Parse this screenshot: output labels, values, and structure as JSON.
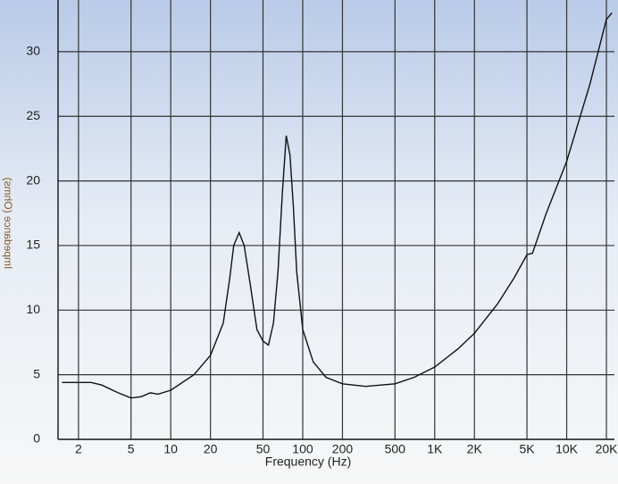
{
  "chart_data": {
    "type": "line",
    "x_label": "Frequency (Hz)",
    "y_label": "Impedance (Ohms)",
    "log_x": true,
    "grid": true,
    "color": "#111111",
    "x": [
      1.5,
      2,
      2.5,
      3,
      4,
      5,
      6,
      7,
      8,
      10,
      15,
      20,
      25,
      28,
      30,
      33,
      36,
      40,
      45,
      50,
      55,
      60,
      65,
      70,
      75,
      80,
      85,
      90,
      100,
      120,
      150,
      200,
      300,
      500,
      700,
      1000,
      1500,
      2000,
      3000,
      4000,
      5000,
      5500,
      7000,
      10000,
      15000,
      20000,
      22000
    ],
    "values": [
      4.4,
      4.4,
      4.4,
      4.2,
      3.6,
      3.2,
      3.3,
      3.6,
      3.5,
      3.8,
      5,
      6.5,
      9,
      12.5,
      15,
      16,
      15,
      12,
      8.5,
      7.6,
      7.3,
      9,
      13,
      19,
      23.5,
      22,
      18,
      13,
      8.5,
      6,
      4.8,
      4.3,
      4.1,
      4.3,
      4.8,
      5.6,
      7,
      8.2,
      10.5,
      12.5,
      14.3,
      14.4,
      17.5,
      21.5,
      27.5,
      32.5,
      33
    ],
    "xlim": [
      1.4,
      23000
    ],
    "ylim": [
      0,
      34
    ],
    "xticks": [
      2,
      5,
      10,
      20,
      50,
      100,
      200,
      500,
      {
        "value": 1000,
        "label": "1K"
      },
      {
        "value": 2000,
        "label": "2K"
      },
      {
        "value": 5000,
        "label": "5K"
      },
      {
        "value": 10000,
        "label": "10K"
      },
      {
        "value": 20000,
        "label": "20K"
      }
    ],
    "yticks": [
      0,
      5,
      10,
      15,
      20,
      25,
      30
    ]
  }
}
